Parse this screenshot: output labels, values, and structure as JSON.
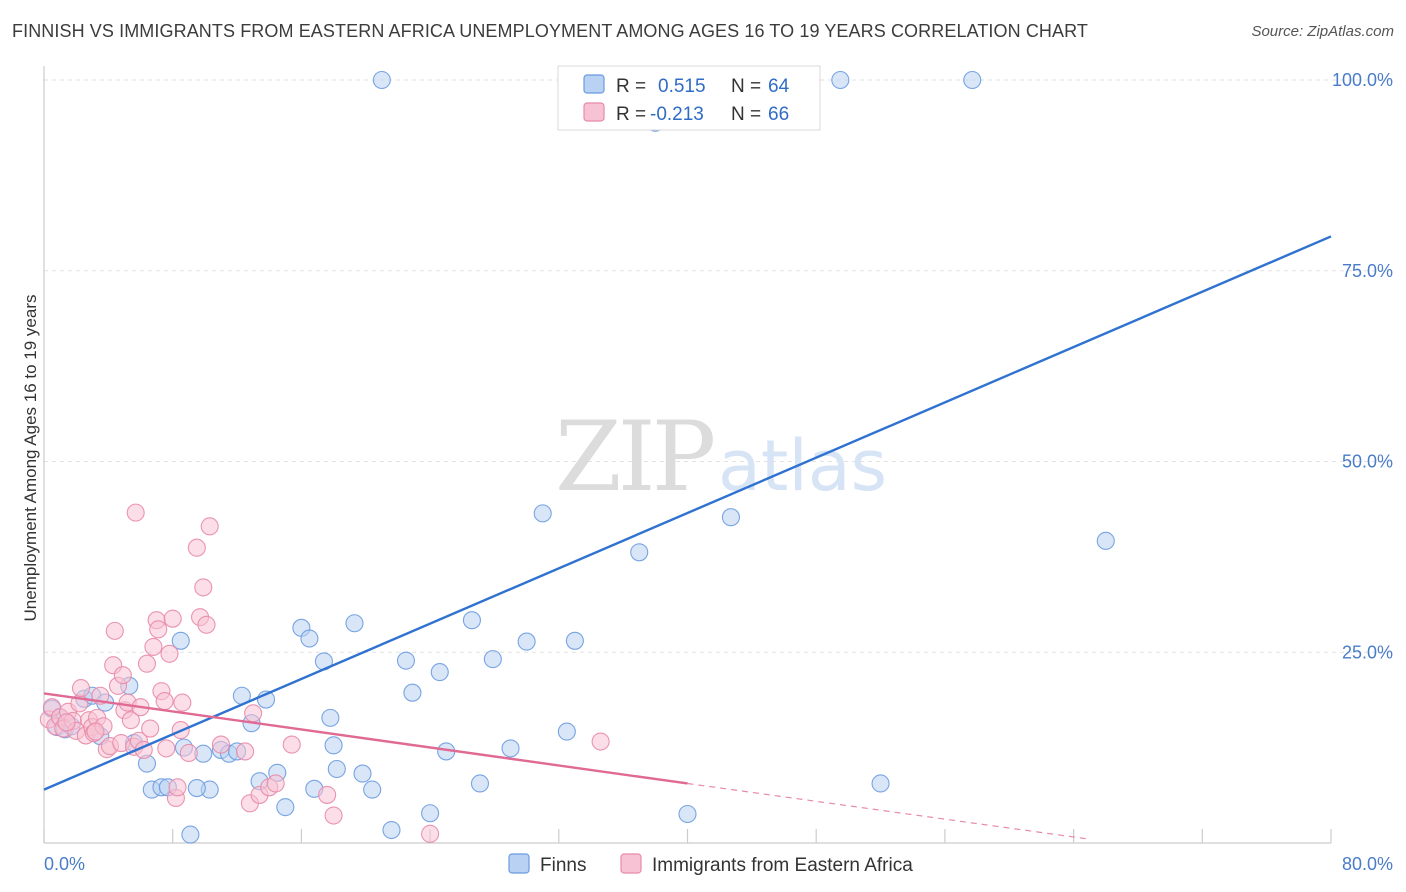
{
  "header": {
    "title": "FINNISH VS IMMIGRANTS FROM EASTERN AFRICA UNEMPLOYMENT AMONG AGES 16 TO 19 YEARS CORRELATION CHART",
    "source": "Source: ZipAtlas.com"
  },
  "watermark": {
    "zip": "ZIP",
    "atlas": "atlas"
  },
  "legend": {
    "rows": [
      {
        "r_label": "R =",
        "r_value": "0.515",
        "n_label": "N =",
        "n_value": "64"
      },
      {
        "r_label": "R =",
        "r_value": "-0.213",
        "n_label": "N =",
        "n_value": "66"
      }
    ]
  },
  "bottom_legend": {
    "finns": "Finns",
    "immigrants": "Immigrants from Eastern Africa"
  },
  "chart_data": {
    "type": "scatter",
    "title": "FINNISH VS IMMIGRANTS FROM EASTERN AFRICA UNEMPLOYMENT AMONG AGES 16 TO 19 YEARS CORRELATION CHART",
    "xlabel": "",
    "ylabel": "Unemployment Among Ages 16 to 19 years",
    "xlim": [
      0,
      80
    ],
    "ylim": [
      0,
      100
    ],
    "x_tick_labels": [
      "0.0%",
      "80.0%"
    ],
    "y_tick_labels": [
      "25.0%",
      "50.0%",
      "75.0%",
      "100.0%"
    ],
    "y_ticks": [
      25,
      50,
      75,
      100
    ],
    "grid": true,
    "legend_position": "top-center",
    "series": [
      {
        "name": "Finns",
        "color": "#6a9be0",
        "fill": "#b9d1f2",
        "R": 0.515,
        "N": 64,
        "trend": {
          "x": [
            0,
            80
          ],
          "y": [
            7.0,
            79.5
          ]
        },
        "points": [
          [
            0.5,
            17.6
          ],
          [
            0.8,
            15.2
          ],
          [
            1.0,
            16.4
          ],
          [
            1.3,
            14.9
          ],
          [
            1.7,
            15.3
          ],
          [
            2.5,
            18.9
          ],
          [
            3.0,
            19.3
          ],
          [
            3.5,
            14.0
          ],
          [
            3.8,
            18.4
          ],
          [
            5.3,
            20.6
          ],
          [
            5.6,
            13.1
          ],
          [
            6.4,
            10.4
          ],
          [
            6.7,
            7.0
          ],
          [
            7.3,
            7.3
          ],
          [
            7.7,
            7.3
          ],
          [
            8.5,
            26.5
          ],
          [
            8.7,
            12.5
          ],
          [
            9.1,
            1.1
          ],
          [
            9.9,
            11.7
          ],
          [
            10.3,
            7.0
          ],
          [
            11.0,
            12.2
          ],
          [
            11.5,
            11.7
          ],
          [
            12.0,
            12.0
          ],
          [
            12.3,
            19.3
          ],
          [
            12.9,
            15.7
          ],
          [
            13.4,
            8.1
          ],
          [
            13.8,
            18.8
          ],
          [
            14.5,
            9.2
          ],
          [
            15.0,
            4.7
          ],
          [
            16.0,
            28.2
          ],
          [
            16.5,
            26.8
          ],
          [
            16.8,
            7.1
          ],
          [
            17.4,
            23.8
          ],
          [
            17.8,
            16.4
          ],
          [
            18.2,
            9.7
          ],
          [
            19.3,
            28.8
          ],
          [
            19.8,
            9.1
          ],
          [
            20.4,
            7.0
          ],
          [
            21.0,
            100.0
          ],
          [
            21.6,
            1.7
          ],
          [
            22.5,
            23.9
          ],
          [
            22.9,
            19.7
          ],
          [
            24.0,
            3.9
          ],
          [
            24.6,
            22.4
          ],
          [
            25.0,
            12.0
          ],
          [
            26.6,
            29.2
          ],
          [
            27.1,
            7.8
          ],
          [
            27.9,
            24.1
          ],
          [
            29.0,
            12.4
          ],
          [
            30.0,
            26.4
          ],
          [
            31.0,
            43.2
          ],
          [
            32.5,
            14.6
          ],
          [
            33.0,
            26.5
          ],
          [
            37.0,
            38.1
          ],
          [
            38.0,
            94.4
          ],
          [
            40.0,
            3.8
          ],
          [
            42.7,
            42.7
          ],
          [
            49.5,
            100.0
          ],
          [
            52.0,
            7.8
          ],
          [
            57.7,
            100.0
          ],
          [
            66.0,
            39.6
          ],
          [
            42.0,
            100.0
          ],
          [
            18.0,
            12.8
          ],
          [
            9.5,
            7.2
          ]
        ]
      },
      {
        "name": "Immigrants from Eastern Africa",
        "color": "#e88aa8",
        "fill": "#f7c3d4",
        "R": -0.213,
        "N": 66,
        "trend": {
          "x": [
            0,
            40
          ],
          "y": [
            19.6,
            7.8
          ]
        },
        "trend_dashed": {
          "x": [
            40,
            65
          ],
          "y": [
            7.8,
            0.5
          ]
        },
        "points": [
          [
            0.3,
            16.2
          ],
          [
            0.5,
            17.8
          ],
          [
            0.7,
            15.3
          ],
          [
            1.0,
            16.5
          ],
          [
            1.2,
            15.0
          ],
          [
            1.5,
            17.2
          ],
          [
            1.8,
            16.0
          ],
          [
            2.0,
            14.7
          ],
          [
            2.2,
            18.3
          ],
          [
            2.3,
            20.3
          ],
          [
            2.6,
            14.1
          ],
          [
            2.8,
            16.1
          ],
          [
            3.0,
            15.2
          ],
          [
            3.1,
            14.4
          ],
          [
            3.3,
            16.4
          ],
          [
            3.5,
            19.3
          ],
          [
            3.7,
            15.3
          ],
          [
            3.9,
            12.3
          ],
          [
            4.1,
            12.7
          ],
          [
            4.3,
            23.3
          ],
          [
            4.4,
            27.8
          ],
          [
            4.6,
            20.6
          ],
          [
            4.8,
            13.1
          ],
          [
            5.0,
            17.4
          ],
          [
            5.2,
            18.4
          ],
          [
            5.4,
            16.1
          ],
          [
            5.6,
            12.6
          ],
          [
            5.7,
            43.3
          ],
          [
            5.9,
            13.4
          ],
          [
            6.0,
            17.8
          ],
          [
            6.2,
            12.2
          ],
          [
            6.4,
            23.5
          ],
          [
            6.6,
            15.0
          ],
          [
            6.8,
            25.7
          ],
          [
            7.0,
            29.2
          ],
          [
            7.1,
            28.0
          ],
          [
            7.3,
            19.9
          ],
          [
            7.5,
            18.6
          ],
          [
            7.6,
            12.4
          ],
          [
            7.8,
            24.8
          ],
          [
            8.0,
            29.4
          ],
          [
            8.2,
            5.9
          ],
          [
            8.3,
            7.3
          ],
          [
            8.5,
            14.8
          ],
          [
            8.6,
            18.4
          ],
          [
            9.0,
            11.8
          ],
          [
            9.5,
            38.7
          ],
          [
            9.7,
            29.6
          ],
          [
            9.9,
            33.5
          ],
          [
            10.1,
            28.6
          ],
          [
            10.3,
            41.5
          ],
          [
            11.0,
            12.9
          ],
          [
            12.5,
            12.0
          ],
          [
            12.8,
            5.2
          ],
          [
            13.0,
            17.0
          ],
          [
            13.4,
            6.3
          ],
          [
            14.0,
            7.3
          ],
          [
            14.4,
            7.8
          ],
          [
            15.4,
            12.9
          ],
          [
            17.6,
            6.3
          ],
          [
            18.0,
            3.6
          ],
          [
            24.0,
            1.2
          ],
          [
            34.6,
            13.3
          ],
          [
            1.4,
            15.8
          ],
          [
            4.9,
            22.0
          ],
          [
            3.2,
            14.6
          ]
        ]
      }
    ]
  }
}
